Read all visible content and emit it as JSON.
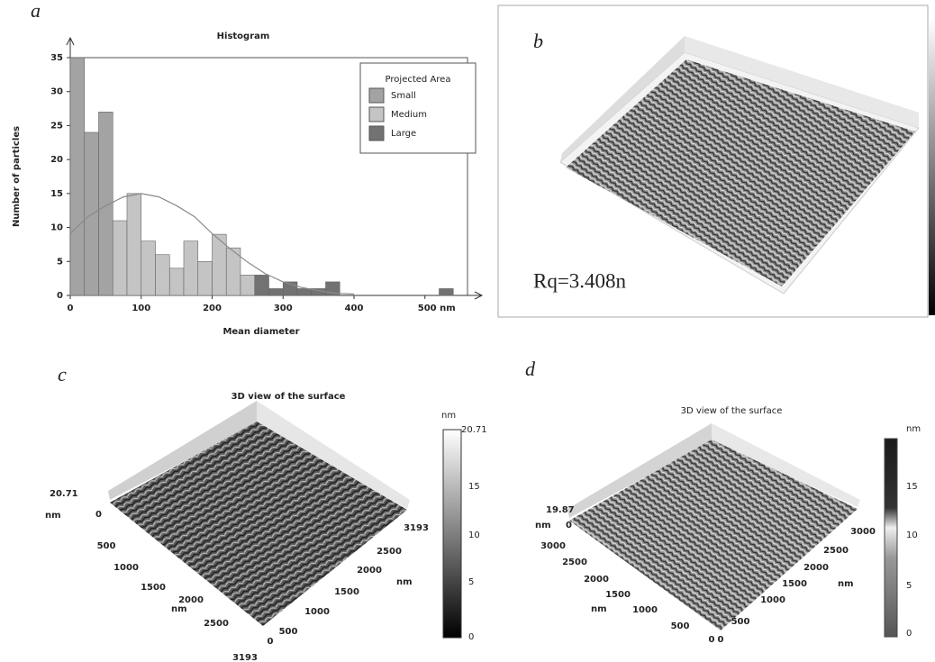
{
  "chart_data": {
    "type": "histogram",
    "title": "Histogram",
    "xlabel": "Mean diameter",
    "ylabel": "Number of particles",
    "bins": [
      0,
      20,
      40,
      60,
      80,
      100,
      120,
      140,
      160,
      180,
      200,
      220,
      240,
      260,
      280,
      300,
      320,
      340,
      360,
      380,
      400,
      420,
      440,
      460,
      480,
      500,
      520,
      540
    ],
    "series": [
      {
        "name": "Small",
        "color": "#a3a3a3",
        "values": [
          35,
          24,
          27,
          0,
          0,
          0,
          0,
          0,
          0,
          0,
          0,
          0,
          0,
          0,
          0,
          0,
          0,
          0,
          0,
          0,
          0,
          0,
          0,
          0,
          0,
          0,
          0
        ]
      },
      {
        "name": "Medium",
        "color": "#c4c4c4",
        "values": [
          0,
          0,
          0,
          11,
          15,
          8,
          6,
          4,
          8,
          5,
          9,
          7,
          3,
          0,
          0,
          0,
          0,
          0,
          0,
          0,
          0,
          0,
          0,
          0,
          0,
          0,
          0
        ]
      },
      {
        "name": "Large",
        "color": "#727272",
        "values": [
          0,
          0,
          0,
          0,
          0,
          0,
          0,
          0,
          0,
          0,
          0,
          0,
          0,
          3,
          1,
          2,
          1,
          1,
          2,
          0,
          0,
          0,
          0,
          0,
          0,
          0,
          1
        ]
      }
    ],
    "fit": {
      "color": "#8a8a8a",
      "x": [
        0,
        25,
        50,
        75,
        100,
        125,
        150,
        175,
        200,
        225,
        250,
        275,
        300,
        325,
        350,
        375,
        400
      ],
      "values": [
        9.1,
        11.6,
        13.2,
        14.5,
        15,
        14.5,
        13.2,
        11.6,
        9.1,
        6.9,
        4.9,
        3.2,
        2.0,
        1.2,
        0.7,
        0.3,
        0.2
      ]
    },
    "legend_title": "Projected Area",
    "legend": "top-right",
    "xlim": [
      0,
      560
    ],
    "xticks": [
      0,
      100,
      200,
      300,
      400,
      {
        "value": 500,
        "label": "500 nm"
      }
    ],
    "ylim": [
      0,
      35
    ],
    "yticks": [
      0,
      5,
      10,
      15,
      20,
      25,
      30,
      35
    ]
  },
  "panels": {
    "a": {
      "letter": "a"
    },
    "b": {
      "letter": "b",
      "roughness": "Rq=3.408n"
    },
    "c": {
      "letter": "c",
      "title": "3D view of the surface",
      "z_max": "20.71",
      "z_unit": "nm",
      "z_min": 0,
      "colorbar": {
        "unit": "nm",
        "max": "20.71",
        "ticks": [
          15,
          10,
          5,
          0
        ]
      },
      "left_axis": {
        "labels": [
          500,
          1000,
          1500,
          2000,
          2500,
          3193
        ],
        "unit": "nm"
      },
      "right_axis": {
        "labels": [
          0,
          500,
          1000,
          1500,
          2000,
          2500,
          3193
        ],
        "unit": "nm"
      }
    },
    "d": {
      "letter": "d",
      "title": "3D view of the surface",
      "z_max": "19.87",
      "z_unit": "nm",
      "z_min": 0,
      "colorbar": {
        "unit": "nm",
        "ticks": [
          15,
          10,
          5,
          0
        ]
      },
      "left_axis": {
        "labels": [
          3000,
          2500,
          2000,
          1500,
          1000,
          500,
          0
        ],
        "unit": "nm"
      },
      "right_axis": {
        "labels": [
          0,
          500,
          1000,
          1500,
          2000,
          2500,
          3000
        ],
        "unit": "nm"
      }
    }
  }
}
